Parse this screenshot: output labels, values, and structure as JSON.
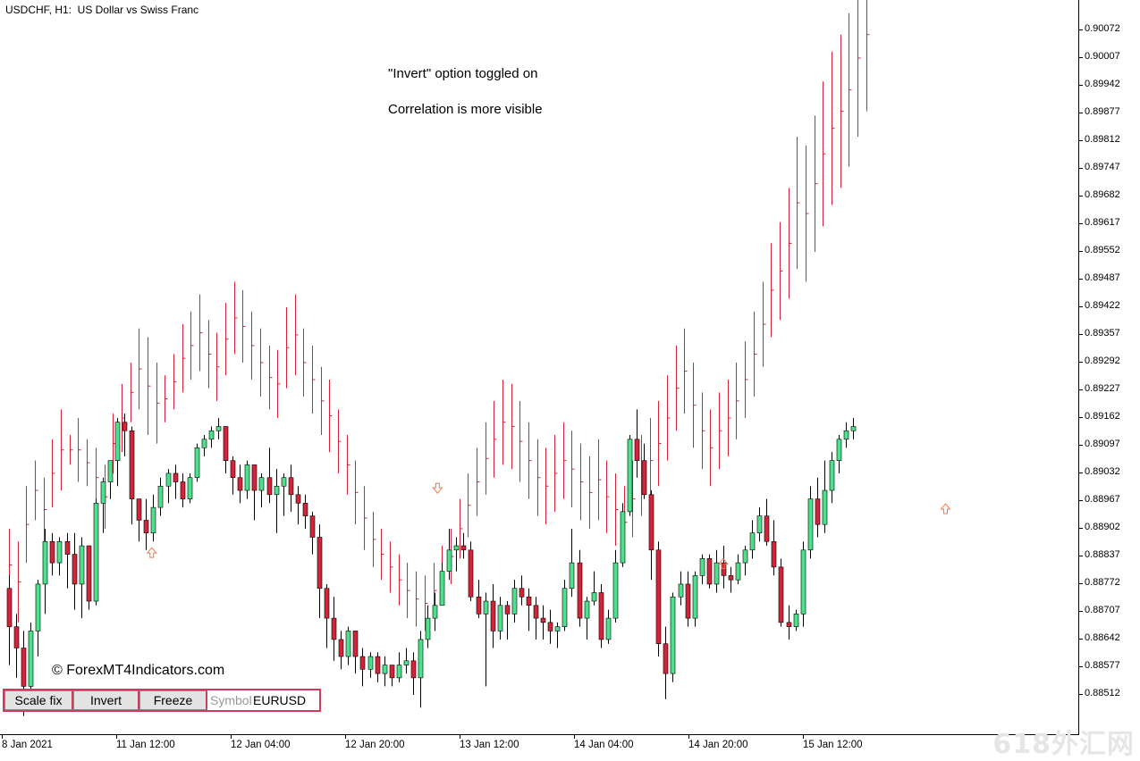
{
  "window": {
    "title": "USDCHF, H1:  US Dollar vs Swiss Franc"
  },
  "annotations": {
    "line1": "\"Invert\" option toggled on",
    "line2": "Correlation is more visible",
    "copyright": "© ForexMT4Indicators.com",
    "watermark": "618外汇网"
  },
  "toolbar": {
    "scale_fix_label": "Scale fix",
    "invert_label": "Invert",
    "freeze_label": "Freeze",
    "symbol_placeholder": "Symbol",
    "symbol_value": "EURUSD"
  },
  "colors": {
    "bull": "#4ee08a",
    "bear": "#d4243a",
    "overlay": "#d4243a",
    "arrow": "#f07850",
    "toolbar_border": "#d23a5c"
  },
  "chart_data": {
    "type": "candlestick",
    "symbol": "USDCHF",
    "timeframe": "H1",
    "overlay_symbol": "EURUSD",
    "overlay_inverted": true,
    "y_ticks": [
      "0.90072",
      "0.90007",
      "0.89942",
      "0.89877",
      "0.89812",
      "0.89747",
      "0.89682",
      "0.89617",
      "0.89552",
      "0.89487",
      "0.89422",
      "0.89357",
      "0.89292",
      "0.89227",
      "0.89162",
      "0.89097",
      "0.89032",
      "0.88967",
      "0.88902",
      "0.88837",
      "0.88772",
      "0.88707",
      "0.88642",
      "0.88577",
      "0.88512"
    ],
    "x_ticks": [
      "8 Jan 2021",
      "11 Jan 12:00",
      "12 Jan 04:00",
      "12 Jan 20:00",
      "13 Jan 12:00",
      "14 Jan 04:00",
      "14 Jan 20:00",
      "15 Jan 12:00"
    ],
    "ylim": [
      0.8848,
      0.9018
    ],
    "candles": [
      [
        0.8876,
        0.8879,
        0.8858,
        0.8867
      ],
      [
        0.8867,
        0.887,
        0.8855,
        0.8862
      ],
      [
        0.8862,
        0.8866,
        0.8846,
        0.8853
      ],
      [
        0.8853,
        0.8868,
        0.8849,
        0.8866
      ],
      [
        0.8866,
        0.8878,
        0.886,
        0.8877
      ],
      [
        0.8877,
        0.889,
        0.887,
        0.8887
      ],
      [
        0.8887,
        0.8889,
        0.8879,
        0.8882
      ],
      [
        0.8882,
        0.8888,
        0.8879,
        0.8887
      ],
      [
        0.8887,
        0.8889,
        0.8876,
        0.8884
      ],
      [
        0.8884,
        0.8889,
        0.8871,
        0.8877
      ],
      [
        0.8877,
        0.8888,
        0.8869,
        0.8886
      ],
      [
        0.8886,
        0.8886,
        0.8871,
        0.8873
      ],
      [
        0.8873,
        0.8897,
        0.8872,
        0.8896
      ],
      [
        0.8896,
        0.8902,
        0.8889,
        0.8901
      ],
      [
        0.8901,
        0.8906,
        0.8897,
        0.8906
      ],
      [
        0.8906,
        0.8916,
        0.89,
        0.8915
      ],
      [
        0.8915,
        0.8917,
        0.8907,
        0.8913
      ],
      [
        0.8913,
        0.8914,
        0.8891,
        0.8897
      ],
      [
        0.8897,
        0.8897,
        0.8887,
        0.8892
      ],
      [
        0.8892,
        0.8897,
        0.8885,
        0.8889
      ],
      [
        0.8889,
        0.8898,
        0.8887,
        0.8895
      ],
      [
        0.8895,
        0.8902,
        0.8893,
        0.89
      ],
      [
        0.89,
        0.8904,
        0.8896,
        0.8903
      ],
      [
        0.8903,
        0.8905,
        0.8897,
        0.8901
      ],
      [
        0.8901,
        0.8903,
        0.8895,
        0.8897
      ],
      [
        0.8897,
        0.8903,
        0.8896,
        0.8902
      ],
      [
        0.8902,
        0.891,
        0.8901,
        0.8909
      ],
      [
        0.8909,
        0.8912,
        0.8907,
        0.8911
      ],
      [
        0.8911,
        0.8914,
        0.8909,
        0.8913
      ],
      [
        0.8913,
        0.8916,
        0.8911,
        0.8914
      ],
      [
        0.8914,
        0.8914,
        0.8903,
        0.8906
      ],
      [
        0.8906,
        0.8907,
        0.8898,
        0.8902
      ],
      [
        0.8902,
        0.8905,
        0.8896,
        0.8899
      ],
      [
        0.8899,
        0.8906,
        0.8897,
        0.8905
      ],
      [
        0.8905,
        0.8905,
        0.8892,
        0.8899
      ],
      [
        0.8899,
        0.8903,
        0.8895,
        0.8902
      ],
      [
        0.8902,
        0.8909,
        0.8896,
        0.8898
      ],
      [
        0.8898,
        0.8904,
        0.8889,
        0.89
      ],
      [
        0.89,
        0.8903,
        0.8893,
        0.8902
      ],
      [
        0.8902,
        0.8905,
        0.8894,
        0.8898
      ],
      [
        0.8898,
        0.89,
        0.8891,
        0.8896
      ],
      [
        0.8896,
        0.8898,
        0.889,
        0.8893
      ],
      [
        0.8893,
        0.8894,
        0.8884,
        0.8888
      ],
      [
        0.8888,
        0.8891,
        0.8869,
        0.8876
      ],
      [
        0.8876,
        0.8877,
        0.8862,
        0.8869
      ],
      [
        0.8869,
        0.8874,
        0.8859,
        0.8864
      ],
      [
        0.8864,
        0.8866,
        0.8857,
        0.886
      ],
      [
        0.886,
        0.8867,
        0.8858,
        0.8866
      ],
      [
        0.8866,
        0.8866,
        0.8856,
        0.886
      ],
      [
        0.886,
        0.8862,
        0.8853,
        0.8857
      ],
      [
        0.8857,
        0.8861,
        0.8855,
        0.886
      ],
      [
        0.886,
        0.8861,
        0.8854,
        0.8856
      ],
      [
        0.8856,
        0.886,
        0.8853,
        0.8858
      ],
      [
        0.8858,
        0.8858,
        0.8853,
        0.8855
      ],
      [
        0.8855,
        0.8861,
        0.8854,
        0.8858
      ],
      [
        0.8858,
        0.8862,
        0.8856,
        0.8859
      ],
      [
        0.8859,
        0.8861,
        0.8851,
        0.8855
      ],
      [
        0.8855,
        0.8866,
        0.8848,
        0.8864
      ],
      [
        0.8864,
        0.8872,
        0.8862,
        0.8869
      ],
      [
        0.8869,
        0.8875,
        0.8866,
        0.8872
      ],
      [
        0.8872,
        0.8882,
        0.8872,
        0.888
      ],
      [
        0.888,
        0.889,
        0.8878,
        0.8885
      ],
      [
        0.8885,
        0.8888,
        0.888,
        0.8886
      ],
      [
        0.8886,
        0.8889,
        0.8883,
        0.8885
      ],
      [
        0.8885,
        0.8887,
        0.8873,
        0.8874
      ],
      [
        0.8874,
        0.8878,
        0.8869,
        0.887
      ],
      [
        0.887,
        0.8875,
        0.8853,
        0.8873
      ],
      [
        0.8873,
        0.8877,
        0.8862,
        0.8866
      ],
      [
        0.8866,
        0.8874,
        0.8864,
        0.8872
      ],
      [
        0.8872,
        0.8873,
        0.8864,
        0.887
      ],
      [
        0.887,
        0.8878,
        0.8868,
        0.8876
      ],
      [
        0.8876,
        0.8879,
        0.8872,
        0.8874
      ],
      [
        0.8874,
        0.8876,
        0.8866,
        0.8872
      ],
      [
        0.8872,
        0.8874,
        0.8864,
        0.8869
      ],
      [
        0.8869,
        0.8872,
        0.8864,
        0.8868
      ],
      [
        0.8868,
        0.8871,
        0.8863,
        0.8866
      ],
      [
        0.8866,
        0.8868,
        0.8862,
        0.8867
      ],
      [
        0.8867,
        0.8878,
        0.8866,
        0.8876
      ],
      [
        0.8876,
        0.889,
        0.8874,
        0.8882
      ],
      [
        0.8882,
        0.8885,
        0.8867,
        0.8869
      ],
      [
        0.8869,
        0.8874,
        0.8864,
        0.8873
      ],
      [
        0.8873,
        0.888,
        0.8872,
        0.8875
      ],
      [
        0.8875,
        0.8877,
        0.8862,
        0.8864
      ],
      [
        0.8864,
        0.8871,
        0.8863,
        0.8869
      ],
      [
        0.8869,
        0.8885,
        0.8868,
        0.8882
      ],
      [
        0.8882,
        0.8896,
        0.8881,
        0.8894
      ],
      [
        0.8894,
        0.8912,
        0.8893,
        0.8911
      ],
      [
        0.8911,
        0.8918,
        0.8902,
        0.8906
      ],
      [
        0.8906,
        0.891,
        0.8897,
        0.8898
      ],
      [
        0.8898,
        0.8899,
        0.8878,
        0.8885
      ],
      [
        0.8885,
        0.8887,
        0.886,
        0.8863
      ],
      [
        0.8863,
        0.8867,
        0.885,
        0.8856
      ],
      [
        0.8856,
        0.8875,
        0.8854,
        0.8874
      ],
      [
        0.8874,
        0.888,
        0.8872,
        0.8877
      ],
      [
        0.8877,
        0.888,
        0.8867,
        0.8869
      ],
      [
        0.8869,
        0.888,
        0.8867,
        0.8879
      ],
      [
        0.8879,
        0.8884,
        0.8877,
        0.8883
      ],
      [
        0.8883,
        0.8884,
        0.8876,
        0.8877
      ],
      [
        0.8877,
        0.8885,
        0.8875,
        0.8882
      ],
      [
        0.8882,
        0.8886,
        0.8876,
        0.8879
      ],
      [
        0.8879,
        0.8881,
        0.8875,
        0.8878
      ],
      [
        0.8878,
        0.8884,
        0.8877,
        0.8882
      ],
      [
        0.8882,
        0.8886,
        0.8879,
        0.8885
      ],
      [
        0.8885,
        0.8892,
        0.8883,
        0.8889
      ],
      [
        0.8889,
        0.8895,
        0.8887,
        0.8893
      ],
      [
        0.8893,
        0.8897,
        0.8886,
        0.8887
      ],
      [
        0.8887,
        0.8892,
        0.8879,
        0.8881
      ],
      [
        0.8881,
        0.8883,
        0.8867,
        0.8868
      ],
      [
        0.8868,
        0.8872,
        0.8864,
        0.8867
      ],
      [
        0.8867,
        0.8871,
        0.8866,
        0.887
      ],
      [
        0.887,
        0.8887,
        0.8867,
        0.8885
      ],
      [
        0.8885,
        0.89,
        0.8883,
        0.8897
      ],
      [
        0.8897,
        0.8902,
        0.8888,
        0.8891
      ],
      [
        0.8891,
        0.8906,
        0.8889,
        0.8899
      ],
      [
        0.8899,
        0.8908,
        0.8896,
        0.8906
      ],
      [
        0.8906,
        0.8912,
        0.8903,
        0.8911
      ],
      [
        0.8911,
        0.8915,
        0.8909,
        0.8913
      ],
      [
        0.8913,
        0.8916,
        0.8911,
        0.8914
      ]
    ],
    "overlay_bars": [
      [
        0.8873,
        0.889
      ],
      [
        0.8868,
        0.8887
      ],
      [
        0.8882,
        0.89
      ],
      [
        0.8892,
        0.8906
      ],
      [
        0.8887,
        0.8902
      ],
      [
        0.8895,
        0.8911
      ],
      [
        0.8899,
        0.8918
      ],
      [
        0.8905,
        0.8912
      ],
      [
        0.8901,
        0.8916
      ],
      [
        0.89,
        0.8911
      ],
      [
        0.8895,
        0.8909
      ],
      [
        0.889,
        0.8905
      ],
      [
        0.8903,
        0.8917
      ],
      [
        0.8908,
        0.8924
      ],
      [
        0.8915,
        0.8929
      ],
      [
        0.8918,
        0.8937
      ],
      [
        0.8912,
        0.8935
      ],
      [
        0.891,
        0.8929
      ],
      [
        0.8915,
        0.8926
      ],
      [
        0.8918,
        0.8931
      ],
      [
        0.8922,
        0.8938
      ],
      [
        0.8925,
        0.8941
      ],
      [
        0.8927,
        0.8945
      ],
      [
        0.8923,
        0.8939
      ],
      [
        0.892,
        0.8936
      ],
      [
        0.8926,
        0.8943
      ],
      [
        0.8931,
        0.8948
      ],
      [
        0.8929,
        0.8946
      ],
      [
        0.8925,
        0.8941
      ],
      [
        0.8921,
        0.8937
      ],
      [
        0.8918,
        0.8933
      ],
      [
        0.8916,
        0.8932
      ],
      [
        0.8923,
        0.8942
      ],
      [
        0.8926,
        0.8945
      ],
      [
        0.8921,
        0.8937
      ],
      [
        0.8917,
        0.8933
      ],
      [
        0.8912,
        0.8928
      ],
      [
        0.8908,
        0.8925
      ],
      [
        0.8903,
        0.8918
      ],
      [
        0.8898,
        0.8912
      ],
      [
        0.8891,
        0.8906
      ],
      [
        0.8885,
        0.89
      ],
      [
        0.8881,
        0.8894
      ],
      [
        0.8878,
        0.889
      ],
      [
        0.8875,
        0.8887
      ],
      [
        0.8872,
        0.8884
      ],
      [
        0.8869,
        0.8882
      ],
      [
        0.8867,
        0.888
      ],
      [
        0.8866,
        0.8879
      ],
      [
        0.8869,
        0.8882
      ],
      [
        0.8873,
        0.8886
      ],
      [
        0.8877,
        0.889
      ],
      [
        0.8883,
        0.8897
      ],
      [
        0.8888,
        0.8903
      ],
      [
        0.8893,
        0.8909
      ],
      [
        0.8898,
        0.8915
      ],
      [
        0.8902,
        0.892
      ],
      [
        0.8905,
        0.8925
      ],
      [
        0.8904,
        0.8924
      ],
      [
        0.8901,
        0.892
      ],
      [
        0.8897,
        0.8915
      ],
      [
        0.8893,
        0.8911
      ],
      [
        0.8891,
        0.8909
      ],
      [
        0.8894,
        0.8912
      ],
      [
        0.8897,
        0.8915
      ],
      [
        0.8895,
        0.8913
      ],
      [
        0.8892,
        0.891
      ],
      [
        0.889,
        0.8907
      ],
      [
        0.8892,
        0.8911
      ],
      [
        0.8889,
        0.8906
      ],
      [
        0.8886,
        0.8903
      ],
      [
        0.8883,
        0.89
      ],
      [
        0.8888,
        0.8906
      ],
      [
        0.8893,
        0.8912
      ],
      [
        0.8896,
        0.8916
      ],
      [
        0.89,
        0.892
      ],
      [
        0.8906,
        0.8926
      ],
      [
        0.8913,
        0.8933
      ],
      [
        0.8917,
        0.8937
      ],
      [
        0.8909,
        0.8929
      ],
      [
        0.8904,
        0.8922
      ],
      [
        0.89,
        0.8918
      ],
      [
        0.8904,
        0.8922
      ],
      [
        0.8907,
        0.8925
      ],
      [
        0.8911,
        0.8929
      ],
      [
        0.8916,
        0.8934
      ],
      [
        0.8921,
        0.8941
      ],
      [
        0.8928,
        0.8948
      ],
      [
        0.8935,
        0.8957
      ],
      [
        0.8939,
        0.8962
      ],
      [
        0.8944,
        0.897
      ],
      [
        0.8951,
        0.8982
      ],
      [
        0.8948,
        0.898
      ],
      [
        0.8955,
        0.8987
      ],
      [
        0.8961,
        0.8995
      ],
      [
        0.8966,
        0.9002
      ],
      [
        0.897,
        0.9006
      ],
      [
        0.8975,
        0.9011
      ],
      [
        0.8982,
        0.9019
      ],
      [
        0.8988,
        0.9024
      ]
    ]
  },
  "arrows": [
    {
      "index": 18,
      "price": 0.88843,
      "dir": "up"
    },
    {
      "index": 54,
      "price": 0.88996,
      "dir": "down"
    },
    {
      "index": 90,
      "price": 0.88817,
      "dir": "up"
    },
    {
      "index": 118,
      "price": 0.88946,
      "dir": "up"
    }
  ]
}
